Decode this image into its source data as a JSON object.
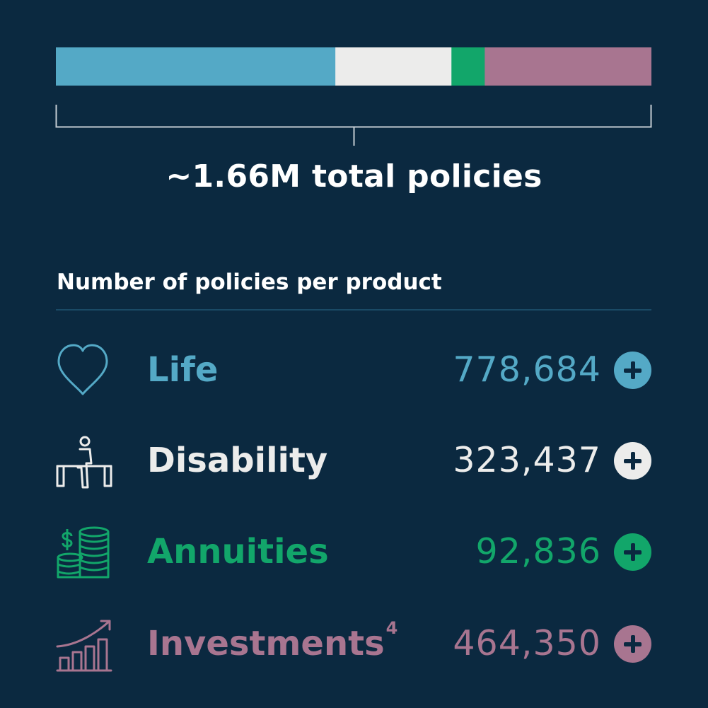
{
  "total_label": "~1.66M total policies",
  "heading": "Number of policies per product",
  "rows": [
    {
      "label": "Life",
      "superscript": "",
      "value": "778,684",
      "color": "#54a9c6",
      "icon": "heart-icon"
    },
    {
      "label": "Disability",
      "superscript": "",
      "value": "323,437",
      "color": "#ececeb",
      "icon": "person-on-parallel-bars-icon"
    },
    {
      "label": "Annuities",
      "superscript": "",
      "value": "92,836",
      "color": "#12a66a",
      "icon": "coin-stack-icon"
    },
    {
      "label": "Investments",
      "superscript": "4",
      "value": "464,350",
      "color": "#a87590",
      "icon": "rising-bar-chart-icon"
    }
  ],
  "chart_data": {
    "type": "bar",
    "orientation": "horizontal-stacked",
    "title": "~1.66M total policies",
    "categories": [
      "Life",
      "Disability",
      "Annuities",
      "Investments"
    ],
    "values": [
      778684,
      323437,
      92836,
      464350
    ],
    "colors": [
      "#54a9c6",
      "#ececeb",
      "#12a66a",
      "#a87590"
    ],
    "grid": false,
    "legend": "none"
  }
}
